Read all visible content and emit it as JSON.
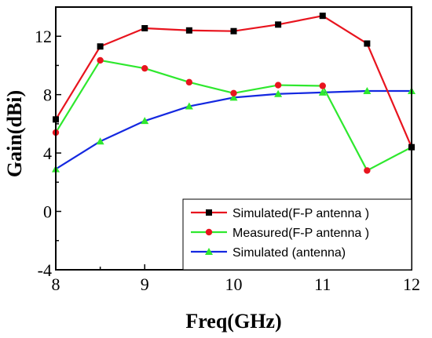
{
  "chart_data": {
    "type": "line",
    "xlabel": "Freq(GHz)",
    "ylabel": "Gain(dBi)",
    "xlim": [
      8,
      12
    ],
    "ylim": [
      -4,
      14
    ],
    "xticks": [
      8,
      9,
      10,
      11,
      12
    ],
    "yticks": [
      -4,
      0,
      4,
      8,
      12
    ],
    "x_tick_labels": [
      "8",
      "9",
      "10",
      "11",
      "12"
    ],
    "y_tick_labels": [
      "-4",
      "0",
      "4",
      "8",
      "12"
    ],
    "grid": false,
    "legend_position": "bottom-right",
    "x": [
      8,
      8.5,
      9,
      9.5,
      10,
      10.5,
      11,
      11.5,
      12
    ],
    "series": [
      {
        "name": "Simulated(F-P antenna )",
        "color": "#e8141e",
        "marker": "square",
        "marker_color": "#000000",
        "values": [
          6.3,
          11.3,
          12.55,
          12.4,
          12.35,
          12.8,
          13.4,
          11.5,
          4.4
        ]
      },
      {
        "name": "Measured(F-P antenna )",
        "color": "#2ee82e",
        "marker": "circle",
        "marker_color": "#e8141e",
        "values": [
          5.4,
          10.35,
          9.8,
          8.85,
          8.1,
          8.65,
          8.6,
          2.8,
          4.4
        ]
      },
      {
        "name": "Simulated (antenna)",
        "color": "#1428e0",
        "marker": "triangle",
        "marker_color": "#2ee82e",
        "values": [
          2.9,
          4.8,
          6.2,
          7.2,
          7.8,
          8.05,
          8.15,
          8.25,
          8.25
        ]
      }
    ]
  }
}
